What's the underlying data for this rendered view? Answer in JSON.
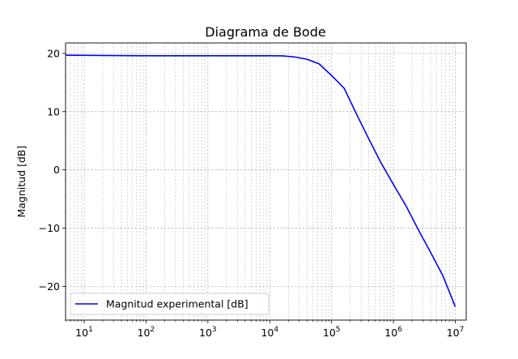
{
  "chart_data": {
    "type": "line",
    "title": "Diagrama de Bode",
    "xlabel": "",
    "ylabel": "Magnitud [dB]",
    "xscale": "log",
    "xlim": [
      5,
      15000000
    ],
    "ylim": [
      -25.8,
      21.8
    ],
    "x_ticks": [
      {
        "value": 10,
        "base": "10",
        "exp": "1"
      },
      {
        "value": 100,
        "base": "10",
        "exp": "2"
      },
      {
        "value": 1000,
        "base": "10",
        "exp": "3"
      },
      {
        "value": 10000,
        "base": "10",
        "exp": "4"
      },
      {
        "value": 100000,
        "base": "10",
        "exp": "5"
      },
      {
        "value": 1000000,
        "base": "10",
        "exp": "6"
      },
      {
        "value": 10000000,
        "base": "10",
        "exp": "7"
      }
    ],
    "y_ticks": [
      {
        "value": 20,
        "label": "20"
      },
      {
        "value": 10,
        "label": "10"
      },
      {
        "value": 0,
        "label": "0"
      },
      {
        "value": -10,
        "label": "−10"
      },
      {
        "value": -20,
        "label": "−20"
      }
    ],
    "grid": true,
    "legend_position": "lower-left",
    "series": [
      {
        "name": "Magnitud experimental [dB]",
        "color": "#0000ff",
        "x": [
          5,
          20,
          100,
          1000,
          10000,
          16000,
          25000,
          40000,
          63000,
          100000,
          160000,
          250000,
          400000,
          630000,
          1000000,
          1600000,
          2500000,
          4000000,
          6300000,
          10000000
        ],
        "y": [
          19.7,
          19.65,
          19.6,
          19.6,
          19.6,
          19.58,
          19.4,
          19.0,
          18.2,
          16.2,
          14.0,
          9.7,
          5.3,
          1.2,
          -2.5,
          -6.2,
          -10.2,
          -14.2,
          -18.2,
          -23.5
        ]
      }
    ]
  }
}
